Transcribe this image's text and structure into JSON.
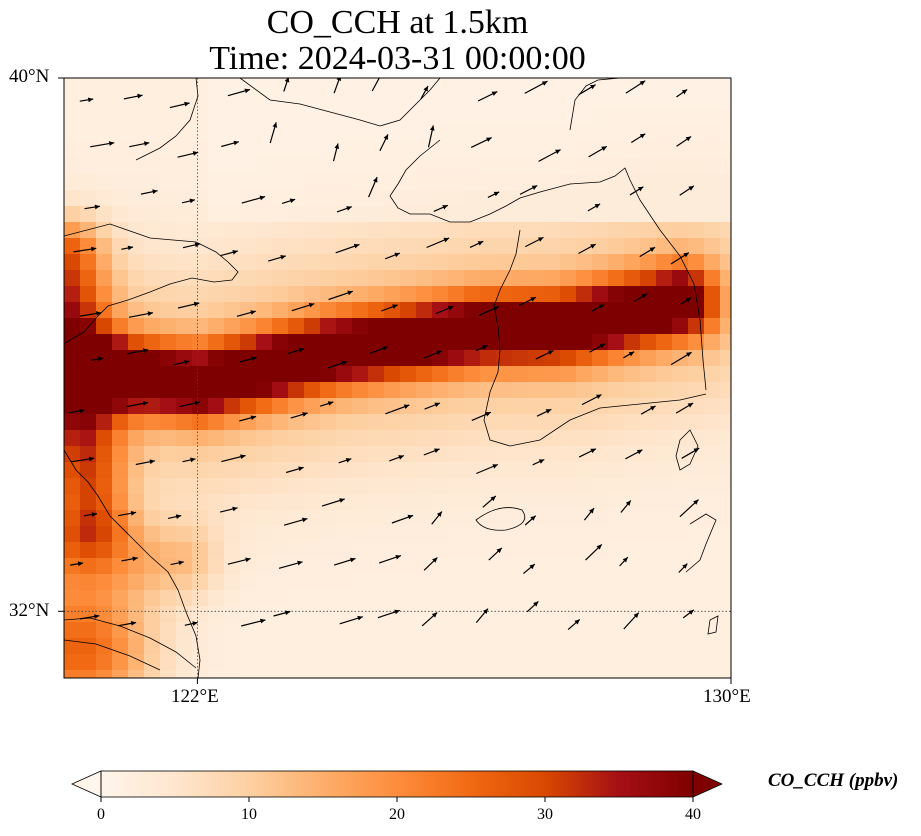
{
  "title_line1": "CO_CCH at 1.5km",
  "title_line2": "Time: 2024-03-31 00:00:00",
  "lat_labels": [
    "40°N",
    "32°N"
  ],
  "lon_labels": [
    "122°E",
    "130°E"
  ],
  "colorbar": {
    "label": "CO_CCH (ppbv)",
    "ticks": [
      "0",
      "10",
      "20",
      "30",
      "40"
    ],
    "min": 0,
    "max": 40,
    "colors": [
      "#fff5eb",
      "#fee6ce",
      "#fdd0a2",
      "#fdae6b",
      "#fd8d3c",
      "#f16913",
      "#d94801",
      "#a50f15",
      "#7f0000"
    ],
    "extend": "both"
  },
  "map": {
    "lon_range": [
      120,
      130
    ],
    "lat_range": [
      31,
      40
    ],
    "gridlines": "dotted"
  }
}
